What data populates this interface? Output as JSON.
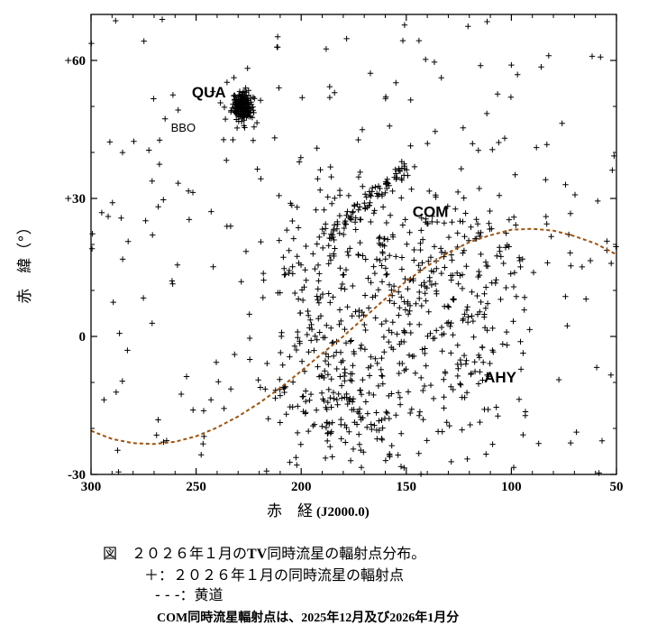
{
  "chart_data": {
    "type": "scatter",
    "title": "",
    "x_axis": {
      "label": "赤　経",
      "label_sub": "(J2000.0)",
      "range": [
        300,
        50
      ],
      "reversed": true,
      "ticks": [
        300,
        250,
        200,
        150,
        100,
        50
      ],
      "tick_labels": [
        "300",
        "250",
        "200",
        "150",
        "100",
        "50"
      ]
    },
    "y_axis": {
      "label": "赤　緯（°）",
      "range": [
        -30,
        70
      ],
      "ticks": [
        60,
        30,
        0,
        -30
      ],
      "tick_labels": [
        "+60",
        "+30",
        "0",
        "-30"
      ]
    },
    "grid": false,
    "marker": "+",
    "marker_color": "#000000",
    "ecliptic_color": "#a0520a",
    "series": [
      {
        "name": "２０２６年１月の同時流星の輻射点",
        "point_count": 1100,
        "clusters": [
          {
            "label": "QUA",
            "ra": 228,
            "dec": 50,
            "note": "dense clump"
          },
          {
            "label": "COM",
            "ra": 165,
            "dec": 30,
            "note": "elongated streak from RA 190/Dec +20 to RA 150/Dec +37"
          },
          {
            "label": "AHY",
            "ra": 125,
            "dec": -8
          },
          {
            "label": "BBO",
            "ra": 262,
            "dec": 45
          }
        ]
      },
      {
        "name": "黄道",
        "style": "dashed",
        "x": [
          300,
          290,
          280,
          270,
          260,
          250,
          240,
          230,
          220,
          210,
          200,
          190,
          180,
          170,
          160,
          150,
          140,
          130,
          120,
          110,
          100,
          90,
          80,
          70,
          60,
          50
        ],
        "y": [
          -20.5,
          -22.3,
          -23.2,
          -23.4,
          -22.9,
          -21.7,
          -19.8,
          -17.4,
          -14.5,
          -11.2,
          -7.5,
          -3.7,
          0,
          4.1,
          8.2,
          12.0,
          15.3,
          18.2,
          20.5,
          22.0,
          23.2,
          23.4,
          23.0,
          21.8,
          20.2,
          17.8
        ]
      }
    ],
    "annotations": [
      {
        "text": "QUA",
        "ra": 252,
        "dec": 52,
        "style": "bold"
      },
      {
        "text": "BBO",
        "ra": 262,
        "dec": 44.5,
        "style": "small"
      },
      {
        "text": "COM",
        "ra": 147,
        "dec": 26,
        "style": "bold"
      },
      {
        "text": "AHY",
        "ra": 113,
        "dec": -10,
        "style": "bold"
      }
    ]
  },
  "caption": {
    "line1_prefix": "図　２０２６年１月の",
    "line1_tv": "TV",
    "line1_suffix": "同時流星の輻射点分布。",
    "line2": "＋：２０２６年１月の同時流星の輻射点",
    "line3": "- - -：黄道",
    "note": "COM同時流星輻射点は、2025年12月及び2026年1月分"
  }
}
